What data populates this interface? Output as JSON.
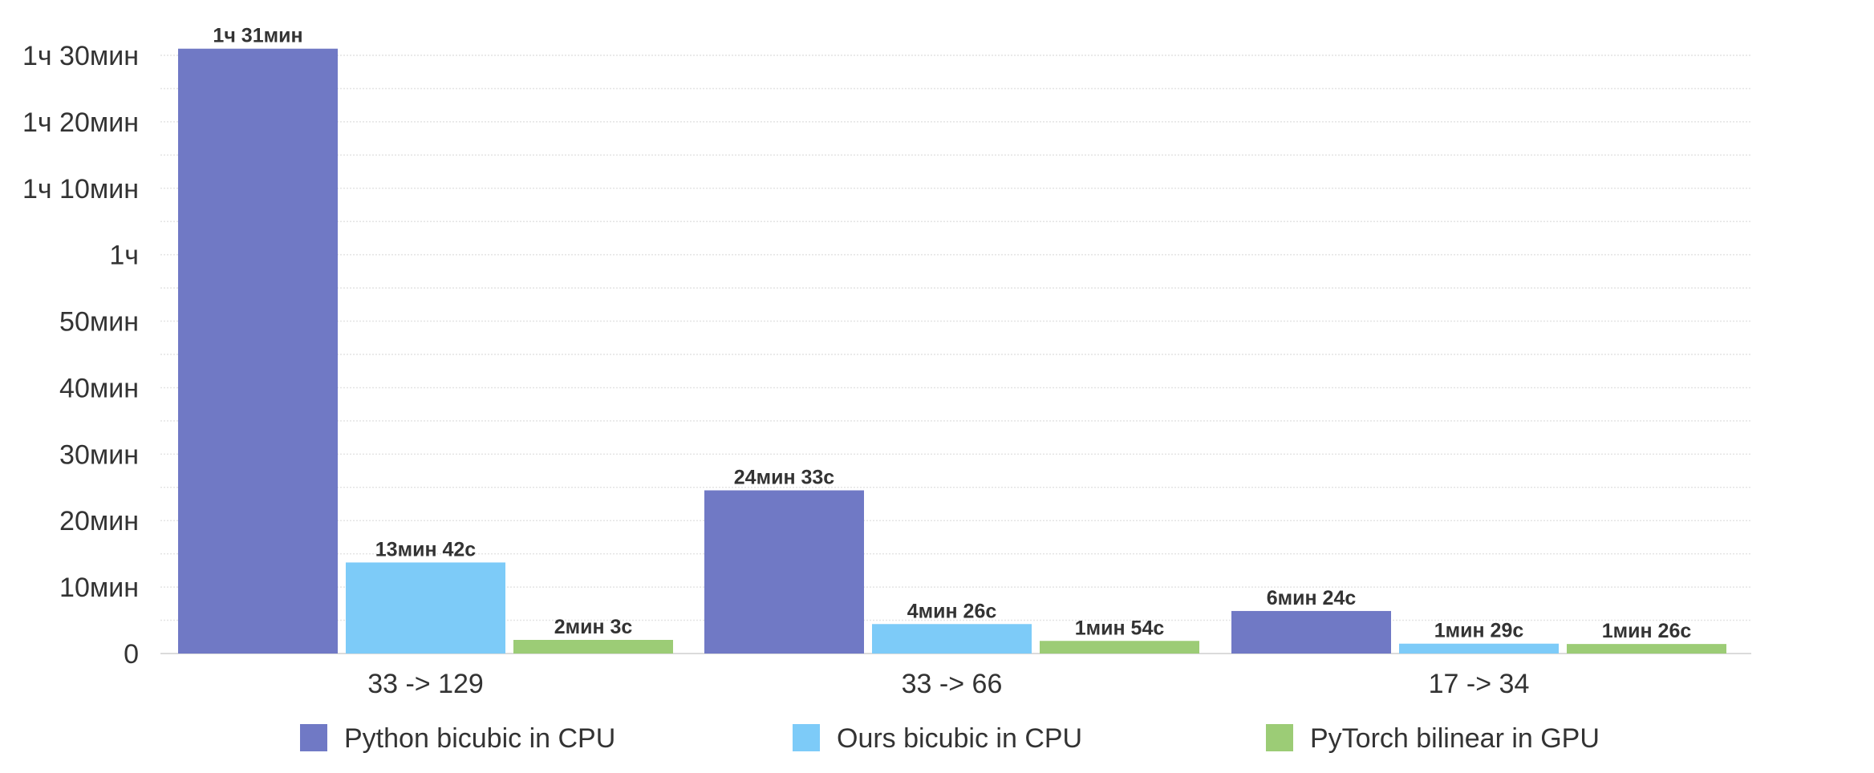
{
  "chart_data": {
    "type": "bar",
    "title": "",
    "xlabel": "",
    "ylabel": "",
    "ylim": [
      0,
      5640
    ],
    "categories": [
      "33 -> 129",
      "33 -> 66",
      "17 -> 34"
    ],
    "yticks": [
      {
        "value": 0,
        "label": "0"
      },
      {
        "value": 600,
        "label": "10мин"
      },
      {
        "value": 1200,
        "label": "20мин"
      },
      {
        "value": 1800,
        "label": "30мин"
      },
      {
        "value": 2400,
        "label": "40мин"
      },
      {
        "value": 3000,
        "label": "50мин"
      },
      {
        "value": 3600,
        "label": "1ч"
      },
      {
        "value": 4200,
        "label": "1ч 10мин"
      },
      {
        "value": 4800,
        "label": "1ч 20мин"
      },
      {
        "value": 5400,
        "label": "1ч 30мин"
      }
    ],
    "series": [
      {
        "name": "Python bicubic in CPU",
        "color": "#7079c5",
        "values": [
          5460,
          1473,
          384
        ],
        "labels": [
          "1ч 31мин",
          "24мин 33с",
          "6мин 24с"
        ]
      },
      {
        "name": "Ours bicubic  in CPU",
        "color": "#7dcbf8",
        "values": [
          822,
          266,
          89
        ],
        "labels": [
          "13мин 42с",
          "4мин 26с",
          "1мин 29с"
        ]
      },
      {
        "name": "PyTorch bilinear in GPU",
        "color": "#9ccc76",
        "values": [
          123,
          114,
          86
        ],
        "labels": [
          "2мин 3с",
          "1мин 54с",
          "1мин 26с"
        ]
      }
    ],
    "grid": true,
    "legend_position": "bottom"
  }
}
